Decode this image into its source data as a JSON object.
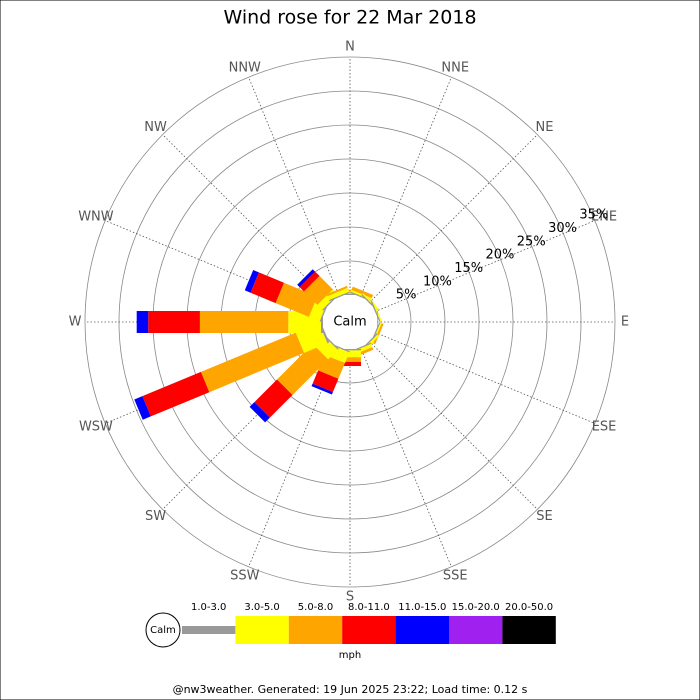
{
  "chart_data": {
    "type": "windrose",
    "title": "Wind rose for 22 Mar 2018",
    "directions": [
      "N",
      "NNE",
      "NE",
      "ENE",
      "E",
      "ESE",
      "SE",
      "SSE",
      "S",
      "SSW",
      "SW",
      "WSW",
      "W",
      "WNW",
      "NW",
      "NNW"
    ],
    "center_label": "Calm",
    "rlim": [
      0,
      35
    ],
    "rticks": [
      {
        "value": 5,
        "label": "5%"
      },
      {
        "value": 10,
        "label": "10%"
      },
      {
        "value": 15,
        "label": "15%"
      },
      {
        "value": 20,
        "label": "20%"
      },
      {
        "value": 25,
        "label": "25%"
      },
      {
        "value": 30,
        "label": "30%"
      },
      {
        "value": 35,
        "label": "35%"
      }
    ],
    "legend_calm": "Calm",
    "legend_unit": "mph",
    "series": [
      {
        "name": "1.0-3.0",
        "color": "#999999",
        "values": [
          0.2,
          0.2,
          0.2,
          0.2,
          0.1,
          0.2,
          0.2,
          0.2,
          0.2,
          0.2,
          0.2,
          0.3,
          0.3,
          0.2,
          0.2,
          0.2
        ]
      },
      {
        "name": "3.0-5.0",
        "color": "#ffff00",
        "values": [
          0.3,
          0.3,
          0.2,
          0.2,
          0,
          0.2,
          0.3,
          0.5,
          1.0,
          1.7,
          2.0,
          3.7,
          4.8,
          1.7,
          1.0,
          0.6
        ]
      },
      {
        "name": "5.0-8.0",
        "color": "#ffa500",
        "values": [
          0.3,
          0.5,
          0,
          0,
          0,
          0.3,
          0,
          0.4,
          0.7,
          2.5,
          7.4,
          15.1,
          13.0,
          5.3,
          2.8,
          0.3
        ]
      },
      {
        "name": "8.0-11.0",
        "color": "#ff0000",
        "values": [
          0,
          0,
          0,
          0,
          0,
          0,
          0,
          0,
          0.6,
          2.1,
          4.7,
          9.3,
          7.6,
          4.0,
          0.9,
          0
        ]
      },
      {
        "name": "11.0-15.0",
        "color": "#0000ff",
        "values": [
          0,
          0,
          0,
          0,
          0,
          0,
          0,
          0,
          0,
          0.4,
          1.0,
          1.3,
          1.7,
          0.9,
          0.5,
          0
        ]
      },
      {
        "name": "15.0-20.0",
        "color": "#a020f0",
        "values": [
          0,
          0,
          0,
          0,
          0,
          0,
          0,
          0,
          0,
          0,
          0,
          0,
          0,
          0,
          0,
          0
        ]
      },
      {
        "name": "20.0-50.0",
        "color": "#000000",
        "values": [
          0,
          0,
          0,
          0,
          0,
          0,
          0,
          0,
          0,
          0,
          0,
          0,
          0,
          0,
          0,
          0
        ]
      }
    ]
  },
  "footer": "@nw3weather. Generated: 19 Jun 2025 23:22; Load time: 0.12 s"
}
